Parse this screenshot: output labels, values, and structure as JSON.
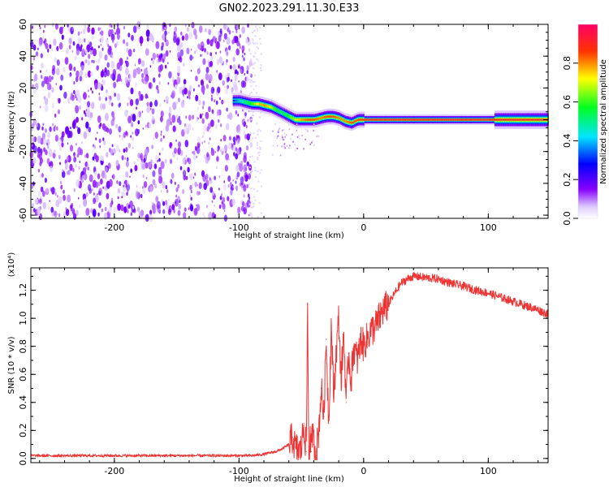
{
  "figure": {
    "title": "GN02.2023.291.11.30.E33"
  },
  "chart_data": [
    {
      "type": "heatmap",
      "xlabel": "Height of straight line (km)",
      "ylabel": "Frequency (Hz)",
      "xlim": [
        -267,
        148
      ],
      "ylim": [
        -62,
        60
      ],
      "x_ticks": [
        -200,
        -100,
        0,
        100
      ],
      "y_ticks": [
        -60,
        -40,
        -20,
        0,
        20,
        40,
        60
      ],
      "x_tick_labels": [
        "-200",
        "-100",
        "0",
        "100"
      ],
      "y_tick_labels": [
        "-60",
        "-40",
        "-20",
        "0",
        "20",
        "40",
        "60"
      ],
      "noise_region_x": [
        -267,
        -90
      ],
      "ridge": {
        "x": [
          -105,
          -100,
          -95,
          -90,
          -85,
          -80,
          -75,
          -70,
          -65,
          -60,
          -55,
          -50,
          -45,
          -40,
          -35,
          -30,
          -25,
          -20,
          -15,
          -10,
          -5,
          0,
          50,
          100,
          148
        ],
        "y": [
          12,
          12,
          11,
          10,
          10,
          9,
          8,
          6,
          4,
          2,
          0,
          0,
          0,
          0,
          1,
          2,
          2,
          1,
          -1,
          -2,
          0,
          0,
          0,
          0,
          0
        ],
        "amplitude": [
          0.3,
          0.4,
          0.5,
          0.6,
          0.75,
          0.8,
          0.7,
          0.55,
          0.5,
          0.6,
          0.7,
          0.8,
          0.85,
          0.85,
          0.8,
          0.85,
          0.85,
          0.8,
          0.8,
          0.85,
          0.85,
          0.9,
          0.9,
          0.9,
          0.9
        ]
      },
      "colorbar": {
        "label": "Normalized spectral amplitude",
        "range": [
          0,
          1
        ],
        "ticks": [
          0.0,
          0.2,
          0.4,
          0.6,
          0.8
        ],
        "tick_labels": [
          "0.0",
          "0.2",
          "0.4",
          "0.6",
          "0.8"
        ],
        "colormap": "hsv-rainbow"
      }
    },
    {
      "type": "line",
      "xlabel": "Height of straight line (km)",
      "ylabel": "SNR (10 * v/v)",
      "y_multiplier": "(x10⁴)",
      "xlim": [
        -267,
        148
      ],
      "ylim": [
        -0.03,
        1.36
      ],
      "x_ticks": [
        -200,
        -100,
        0,
        100
      ],
      "y_ticks": [
        0.0,
        0.2,
        0.4,
        0.6,
        0.8,
        1.0,
        1.2
      ],
      "x_tick_labels": [
        "-200",
        "-100",
        "0",
        "100"
      ],
      "y_tick_labels": [
        "0.0",
        "0.2",
        "0.4",
        "0.6",
        "0.8",
        "1.0",
        "1.2"
      ],
      "series": [
        {
          "color": "#ee3333",
          "x": [
            -267,
            -200,
            -150,
            -100,
            -90,
            -80,
            -70,
            -65,
            -60,
            -57,
            -55,
            -52,
            -50,
            -48,
            -46,
            -45,
            -44,
            -43,
            -42,
            -41,
            -40,
            -38,
            -36,
            -34,
            -32,
            -30,
            -28,
            -26,
            -24,
            -22,
            -20,
            -18,
            -16,
            -14,
            -12,
            -10,
            -8,
            -5,
            -2,
            0,
            5,
            10,
            15,
            20,
            25,
            30,
            35,
            40,
            50,
            60,
            70,
            80,
            90,
            100,
            110,
            120,
            130,
            140,
            148
          ],
          "y": [
            0.02,
            0.02,
            0.02,
            0.02,
            0.02,
            0.03,
            0.05,
            0.07,
            0.1,
            0.15,
            0.08,
            0.05,
            0.07,
            0.25,
            0.05,
            1.1,
            0.03,
            0.15,
            0.05,
            0.2,
            0.1,
            0.05,
            0.2,
            0.5,
            0.3,
            0.85,
            0.25,
            0.95,
            0.45,
            0.75,
            1.0,
            0.55,
            0.9,
            0.4,
            0.75,
            0.55,
            0.8,
            0.7,
            0.85,
            0.8,
            0.9,
            0.95,
            1.05,
            1.1,
            1.18,
            1.25,
            1.28,
            1.3,
            1.29,
            1.28,
            1.25,
            1.23,
            1.2,
            1.18,
            1.15,
            1.12,
            1.09,
            1.06,
            1.03
          ]
        }
      ]
    }
  ]
}
